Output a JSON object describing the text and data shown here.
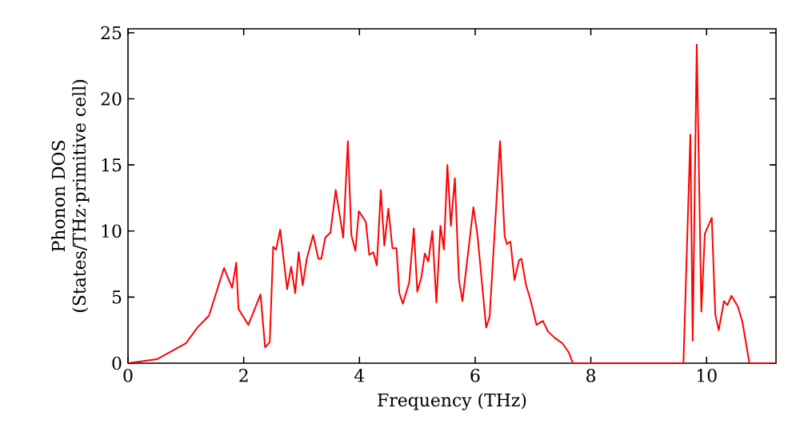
{
  "chart_data": {
    "type": "line",
    "xlabel": "Frequency (THz)",
    "ylabel": "Phonon DOS\n(States/THz·primitive cell)",
    "x": [
      0,
      0.5,
      1.0,
      1.2,
      1.4,
      1.66,
      1.8,
      1.87,
      1.91,
      2.08,
      2.29,
      2.37,
      2.45,
      2.51,
      2.56,
      2.63,
      2.75,
      2.82,
      2.89,
      2.95,
      3.02,
      3.09,
      3.2,
      3.29,
      3.34,
      3.41,
      3.5,
      3.59,
      3.72,
      3.8,
      3.86,
      3.93,
      3.99,
      4.11,
      4.17,
      4.24,
      4.3,
      4.37,
      4.43,
      4.5,
      4.57,
      4.64,
      4.69,
      4.75,
      4.86,
      4.94,
      5.0,
      5.07,
      5.13,
      5.19,
      5.26,
      5.33,
      5.4,
      5.46,
      5.52,
      5.58,
      5.65,
      5.72,
      5.78,
      5.97,
      6.04,
      6.19,
      6.25,
      6.43,
      6.51,
      6.55,
      6.61,
      6.68,
      6.76,
      6.8,
      6.88,
      6.95,
      7.06,
      7.17,
      7.26,
      7.38,
      7.51,
      7.62,
      7.69,
      9.6,
      9.72,
      9.76,
      9.83,
      9.91,
      9.97,
      10.09,
      10.15,
      10.21,
      10.3,
      10.36,
      10.43,
      10.54,
      10.62,
      10.74,
      11.2
    ],
    "values": [
      0,
      0.3,
      1.5,
      2.7,
      3.6,
      7.2,
      5.7,
      7.6,
      4.1,
      2.9,
      5.2,
      1.2,
      1.6,
      8.8,
      8.6,
      10.1,
      5.6,
      7.3,
      5.3,
      8.4,
      5.9,
      7.9,
      9.7,
      7.9,
      7.9,
      9.5,
      9.9,
      13.1,
      9.5,
      16.8,
      9.7,
      8.5,
      11.5,
      10.7,
      8.2,
      8.4,
      7.4,
      13.1,
      8.9,
      11.7,
      8.7,
      8.7,
      5.3,
      4.5,
      6.1,
      10.2,
      5.4,
      6.5,
      8.3,
      7.7,
      10.0,
      4.6,
      10.4,
      8.6,
      15.0,
      10.4,
      14.0,
      6.3,
      4.7,
      11.8,
      9.7,
      2.7,
      3.5,
      16.8,
      9.6,
      9.0,
      9.2,
      6.3,
      7.8,
      7.9,
      5.9,
      4.9,
      2.9,
      3.2,
      2.4,
      1.9,
      1.5,
      0.8,
      0,
      0,
      17.3,
      1.7,
      24.1,
      3.9,
      9.8,
      11.0,
      3.7,
      2.5,
      4.7,
      4.4,
      5.1,
      4.3,
      3.1,
      0,
      0
    ],
    "color": "#ff0000",
    "xlim": [
      0,
      11.2
    ],
    "ylim": [
      0,
      25.3
    ],
    "xticks": [
      0,
      2,
      4,
      6,
      8,
      10
    ],
    "yticks": [
      0,
      5,
      10,
      15,
      20,
      25
    ],
    "grid": false
  }
}
